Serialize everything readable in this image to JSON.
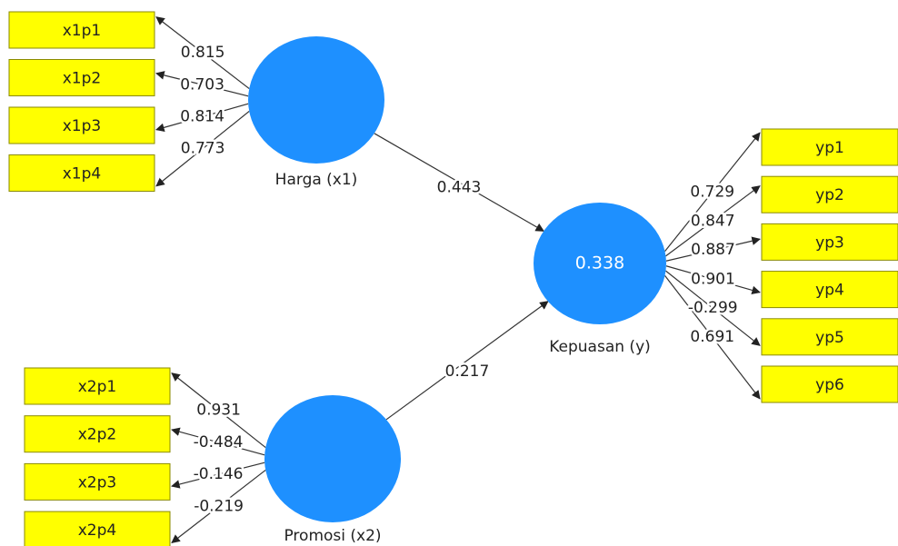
{
  "harga": {
    "label": "Harga (x1)",
    "indicators": [
      "x1p1",
      "x1p2",
      "x1p3",
      "x1p4"
    ],
    "loadings": [
      0.815,
      0.703,
      0.814,
      0.773
    ]
  },
  "promosi": {
    "label": "Promosi (x2)",
    "indicators": [
      "x2p1",
      "x2p2",
      "x2p3",
      "x2p4"
    ],
    "loadings": [
      0.931,
      -0.484,
      -0.146,
      -0.219
    ]
  },
  "kepuasan": {
    "label": "Kepuasan (y)",
    "r_squared": 0.338,
    "indicators": [
      "yp1",
      "yp2",
      "yp3",
      "yp4",
      "yp5",
      "yp6"
    ],
    "loadings": [
      0.729,
      0.847,
      0.887,
      0.901,
      -0.299,
      0.691
    ]
  },
  "paths": {
    "harga_to_kepuasan": 0.443,
    "promosi_to_kepuasan": 0.217
  }
}
